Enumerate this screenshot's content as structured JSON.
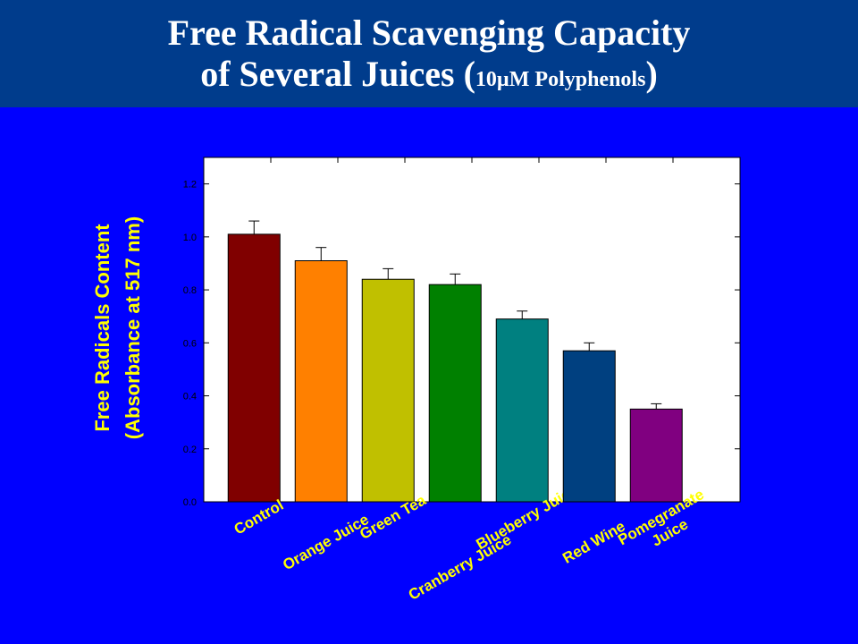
{
  "slide": {
    "title_line1": "Free Radical Scavenging Capacity",
    "title_line2_a": "of Several Juices (",
    "title_line2_b": "10µM Polyphenols",
    "title_line2_c": ")"
  },
  "colors": {
    "background": "#0000FF",
    "title_band": "#003C8C",
    "title_text": "#FFFFFF",
    "label_text": "#FFFF00",
    "plot_background": "#FFFFFF"
  },
  "chart_data": {
    "type": "bar",
    "title": "",
    "xlabel": "",
    "ylabel_lines": [
      "Free Radicals Content",
      "(Absorbance at 517 nm)"
    ],
    "ylim": [
      0,
      1.3
    ],
    "yticks": [
      "0.0",
      "0.2",
      "0.4",
      "0.6",
      "0.8",
      "1.0",
      "1.2"
    ],
    "grid": false,
    "legend": "none",
    "categories": [
      {
        "lines": [
          "Control"
        ]
      },
      {
        "lines": [
          "Orange Juice"
        ]
      },
      {
        "lines": [
          "Green Tea"
        ]
      },
      {
        "lines": [
          "Cranberry Juice"
        ]
      },
      {
        "lines": [
          "Blueberry Juice"
        ]
      },
      {
        "lines": [
          "Red Wine"
        ]
      },
      {
        "lines": [
          "Pomegranate",
          "Juice"
        ]
      }
    ],
    "values": [
      1.01,
      0.91,
      0.84,
      0.82,
      0.69,
      0.57,
      0.35
    ],
    "errors": [
      0.05,
      0.05,
      0.04,
      0.04,
      0.03,
      0.03,
      0.02
    ],
    "bar_colors": [
      "#800000",
      "#FF8000",
      "#C0C000",
      "#008000",
      "#008080",
      "#004080",
      "#800080"
    ]
  }
}
